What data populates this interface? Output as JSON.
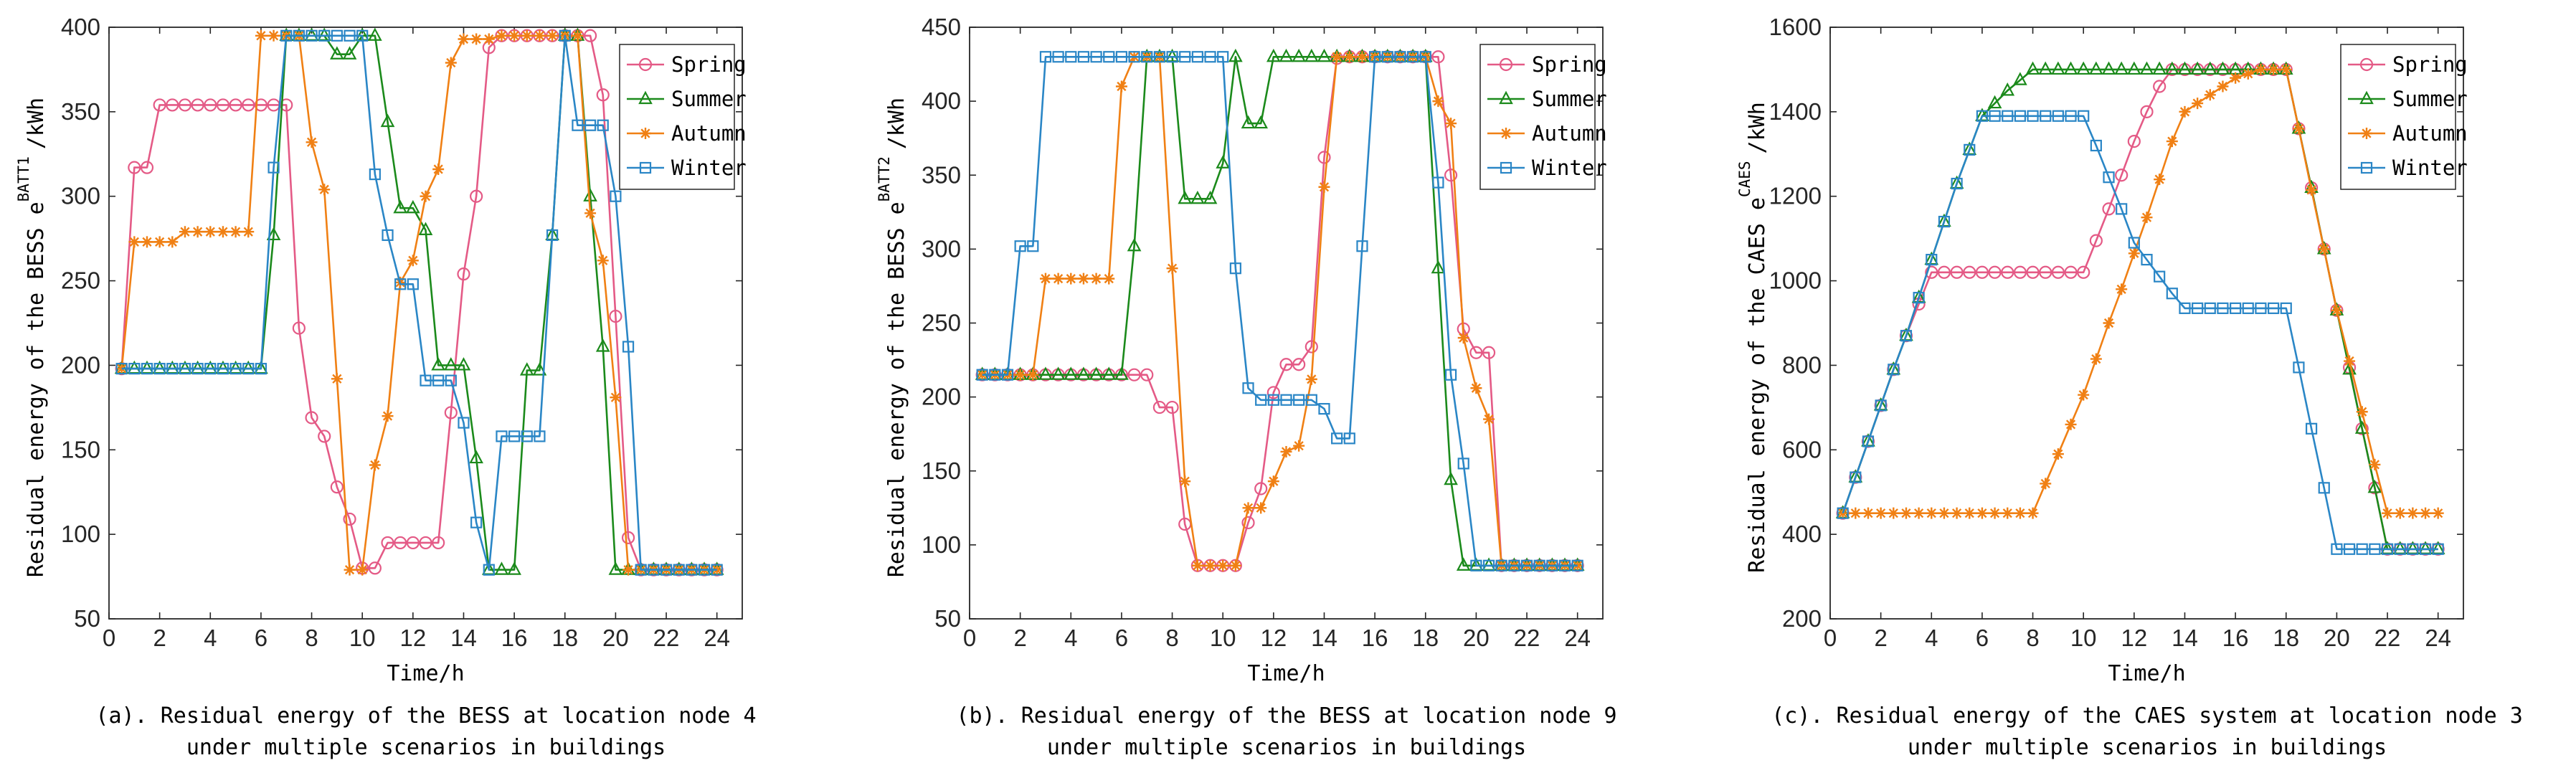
{
  "chart_data": [
    {
      "type": "line",
      "ylabel_text": "Residual energy of the BESS e",
      "ylabel_sup": "BATT1",
      "ylabel_unit": "/kWh",
      "xlabel": "Time/h",
      "caption_line1": "(a). Residual energy of the BESS at location node 4",
      "caption_line2": "under multiple scenarios in buildings",
      "xlim": [
        0,
        25
      ],
      "ylim": [
        50,
        400
      ],
      "xticks": [
        0,
        2,
        4,
        6,
        8,
        10,
        12,
        14,
        16,
        18,
        20,
        22,
        24
      ],
      "yticks": [
        50,
        100,
        150,
        200,
        250,
        300,
        350,
        400
      ],
      "x": [
        0.5,
        1,
        1.5,
        2,
        2.5,
        3,
        3.5,
        4,
        4.5,
        5,
        5.5,
        6,
        6.5,
        7,
        7.5,
        8,
        8.5,
        9,
        9.5,
        10,
        10.5,
        11,
        11.5,
        12,
        12.5,
        13,
        13.5,
        14,
        14.5,
        15,
        15.5,
        16,
        16.5,
        17,
        17.5,
        18,
        18.5,
        19,
        19.5,
        20,
        20.5,
        21,
        21.5,
        22,
        22.5,
        23,
        23.5,
        24
      ],
      "series": [
        {
          "name": "Spring",
          "color": "#e45a86",
          "marker": "circle",
          "values": [
            198,
            317,
            317,
            354,
            354,
            354,
            354,
            354,
            354,
            354,
            354,
            354,
            354,
            354,
            222,
            169,
            158,
            128,
            109,
            80,
            80,
            95,
            95,
            95,
            95,
            95,
            172,
            254,
            300,
            388,
            395,
            395,
            395,
            395,
            395,
            395,
            395,
            395,
            360,
            229,
            98,
            79,
            79,
            79,
            79,
            79,
            79,
            79
          ]
        },
        {
          "name": "Summer",
          "color": "#1b8a1b",
          "marker": "triangle",
          "values": [
            198,
            198,
            198,
            198,
            198,
            198,
            198,
            198,
            198,
            198,
            198,
            198,
            277,
            395,
            395,
            395,
            395,
            384,
            384,
            395,
            395,
            344,
            293,
            293,
            280,
            200,
            200,
            200,
            145,
            79,
            79,
            79,
            197,
            197,
            277,
            395,
            395,
            300,
            211,
            79,
            79,
            79,
            79,
            79,
            79,
            79,
            79,
            79
          ]
        },
        {
          "name": "Autumn",
          "color": "#f08014",
          "marker": "star",
          "values": [
            198,
            273,
            273,
            273,
            273,
            279,
            279,
            279,
            279,
            279,
            279,
            395,
            395,
            395,
            395,
            332,
            304,
            192,
            79,
            79,
            141,
            170,
            249,
            262,
            300,
            316,
            379,
            393,
            393,
            393,
            395,
            395,
            395,
            395,
            395,
            395,
            395,
            290,
            262,
            181,
            79,
            79,
            79,
            79,
            79,
            79,
            79,
            79
          ]
        },
        {
          "name": "Winter",
          "color": "#2a86c6",
          "marker": "square",
          "values": [
            198,
            198,
            198,
            198,
            198,
            198,
            198,
            198,
            198,
            198,
            198,
            198,
            317,
            395,
            395,
            395,
            395,
            395,
            395,
            395,
            313,
            277,
            248,
            248,
            191,
            191,
            191,
            166,
            107,
            79,
            158,
            158,
            158,
            158,
            277,
            395,
            342,
            342,
            342,
            300,
            211,
            79,
            79,
            79,
            79,
            79,
            79,
            79
          ]
        }
      ]
    },
    {
      "type": "line",
      "ylabel_text": "Residual energy of the BESS e",
      "ylabel_sup": "BATT2",
      "ylabel_unit": "/kWh",
      "xlabel": "Time/h",
      "caption_line1": "(b). Residual energy of the BESS at location node 9",
      "caption_line2": "under multiple scenarios in buildings",
      "xlim": [
        0,
        25
      ],
      "ylim": [
        50,
        450
      ],
      "xticks": [
        0,
        2,
        4,
        6,
        8,
        10,
        12,
        14,
        16,
        18,
        20,
        22,
        24
      ],
      "yticks": [
        50,
        100,
        150,
        200,
        250,
        300,
        350,
        400,
        450
      ],
      "x": [
        0.5,
        1,
        1.5,
        2,
        2.5,
        3,
        3.5,
        4,
        4.5,
        5,
        5.5,
        6,
        6.5,
        7,
        7.5,
        8,
        8.5,
        9,
        9.5,
        10,
        10.5,
        11,
        11.5,
        12,
        12.5,
        13,
        13.5,
        14,
        14.5,
        15,
        15.5,
        16,
        16.5,
        17,
        17.5,
        18,
        18.5,
        19,
        19.5,
        20,
        20.5,
        21,
        21.5,
        22,
        22.5,
        23,
        23.5,
        24
      ],
      "series": [
        {
          "name": "Spring",
          "color": "#e45a86",
          "marker": "circle",
          "values": [
            215,
            215,
            215,
            215,
            215,
            215,
            215,
            215,
            215,
            215,
            215,
            215,
            215,
            215,
            193,
            193,
            114,
            86,
            86,
            86,
            86,
            115,
            138,
            203,
            222,
            222,
            234,
            362,
            429,
            430,
            430,
            430,
            430,
            430,
            430,
            430,
            430,
            350,
            246,
            230,
            230,
            86,
            86,
            86,
            86,
            86,
            86,
            86
          ]
        },
        {
          "name": "Summer",
          "color": "#1b8a1b",
          "marker": "triangle",
          "values": [
            215,
            215,
            215,
            215,
            215,
            215,
            215,
            215,
            215,
            215,
            215,
            215,
            302,
            430,
            430,
            430,
            334,
            334,
            334,
            358,
            430,
            385,
            385,
            430,
            430,
            430,
            430,
            430,
            430,
            430,
            430,
            430,
            430,
            430,
            430,
            430,
            287,
            144,
            86,
            86,
            86,
            86,
            86,
            86,
            86,
            86,
            86,
            86
          ]
        },
        {
          "name": "Autumn",
          "color": "#f08014",
          "marker": "star",
          "values": [
            215,
            215,
            215,
            215,
            215,
            280,
            280,
            280,
            280,
            280,
            280,
            410,
            430,
            430,
            430,
            287,
            143,
            86,
            86,
            86,
            86,
            125,
            125,
            143,
            163,
            167,
            212,
            342,
            430,
            430,
            430,
            430,
            430,
            430,
            430,
            430,
            400,
            385,
            240,
            206,
            185,
            86,
            86,
            86,
            86,
            86,
            86,
            86
          ]
        },
        {
          "name": "Winter",
          "color": "#2a86c6",
          "marker": "square",
          "values": [
            215,
            215,
            215,
            302,
            302,
            430,
            430,
            430,
            430,
            430,
            430,
            430,
            430,
            430,
            430,
            430,
            430,
            430,
            430,
            430,
            287,
            206,
            198,
            198,
            198,
            198,
            198,
            192,
            172,
            172,
            302,
            430,
            430,
            430,
            430,
            430,
            345,
            215,
            155,
            86,
            86,
            86,
            86,
            86,
            86,
            86,
            86,
            86
          ]
        }
      ]
    },
    {
      "type": "line",
      "ylabel_text": "Residual energy of the CAES e",
      "ylabel_sup": "CAES",
      "ylabel_unit": "/kWh",
      "xlabel": "Time/h",
      "caption_line1": "(c). Residual energy of the CAES system at location node 3",
      "caption_line2": "under multiple scenarios in buildings",
      "xlim": [
        0,
        25
      ],
      "ylim": [
        200,
        1600
      ],
      "xticks": [
        0,
        2,
        4,
        6,
        8,
        10,
        12,
        14,
        16,
        18,
        20,
        22,
        24
      ],
      "yticks": [
        200,
        400,
        600,
        800,
        1000,
        1200,
        1400,
        1600
      ],
      "x": [
        0.5,
        1,
        1.5,
        2,
        2.5,
        3,
        3.5,
        4,
        4.5,
        5,
        5.5,
        6,
        6.5,
        7,
        7.5,
        8,
        8.5,
        9,
        9.5,
        10,
        10.5,
        11,
        11.5,
        12,
        12.5,
        13,
        13.5,
        14,
        14.5,
        15,
        15.5,
        16,
        16.5,
        17,
        17.5,
        18,
        18.5,
        19,
        19.5,
        20,
        20.5,
        21,
        21.5,
        22,
        22.5,
        23,
        23.5,
        24
      ],
      "series": [
        {
          "name": "Spring",
          "color": "#e45a86",
          "marker": "circle",
          "values": [
            450,
            535,
            620,
            705,
            790,
            870,
            945,
            1020,
            1020,
            1020,
            1020,
            1020,
            1020,
            1020,
            1020,
            1020,
            1020,
            1020,
            1020,
            1020,
            1095,
            1170,
            1250,
            1330,
            1400,
            1460,
            1500,
            1500,
            1500,
            1500,
            1500,
            1500,
            1500,
            1500,
            1500,
            1500,
            1360,
            1220,
            1075,
            930,
            795,
            650,
            510,
            365,
            365,
            365,
            365,
            365
          ]
        },
        {
          "name": "Summer",
          "color": "#1b8a1b",
          "marker": "triangle",
          "values": [
            450,
            535,
            620,
            705,
            790,
            870,
            960,
            1050,
            1140,
            1230,
            1310,
            1390,
            1420,
            1450,
            1475,
            1500,
            1500,
            1500,
            1500,
            1500,
            1500,
            1500,
            1500,
            1500,
            1500,
            1500,
            1500,
            1500,
            1500,
            1500,
            1500,
            1500,
            1500,
            1500,
            1500,
            1500,
            1360,
            1220,
            1075,
            930,
            790,
            650,
            510,
            365,
            365,
            365,
            365,
            365
          ]
        },
        {
          "name": "Autumn",
          "color": "#f08014",
          "marker": "star",
          "values": [
            450,
            450,
            450,
            450,
            450,
            450,
            450,
            450,
            450,
            450,
            450,
            450,
            450,
            450,
            450,
            450,
            520,
            590,
            660,
            730,
            815,
            900,
            980,
            1065,
            1150,
            1240,
            1330,
            1400,
            1420,
            1440,
            1460,
            1480,
            1490,
            1500,
            1500,
            1500,
            1360,
            1215,
            1075,
            930,
            810,
            690,
            565,
            450,
            450,
            450,
            450,
            450
          ]
        },
        {
          "name": "Winter",
          "color": "#2a86c6",
          "marker": "square",
          "values": [
            450,
            535,
            620,
            705,
            790,
            870,
            960,
            1050,
            1140,
            1230,
            1310,
            1390,
            1390,
            1390,
            1390,
            1390,
            1390,
            1390,
            1390,
            1390,
            1320,
            1245,
            1170,
            1090,
            1050,
            1010,
            970,
            935,
            935,
            935,
            935,
            935,
            935,
            935,
            935,
            935,
            795,
            650,
            510,
            365,
            365,
            365,
            365,
            365,
            365,
            365,
            365,
            365
          ]
        }
      ]
    }
  ]
}
